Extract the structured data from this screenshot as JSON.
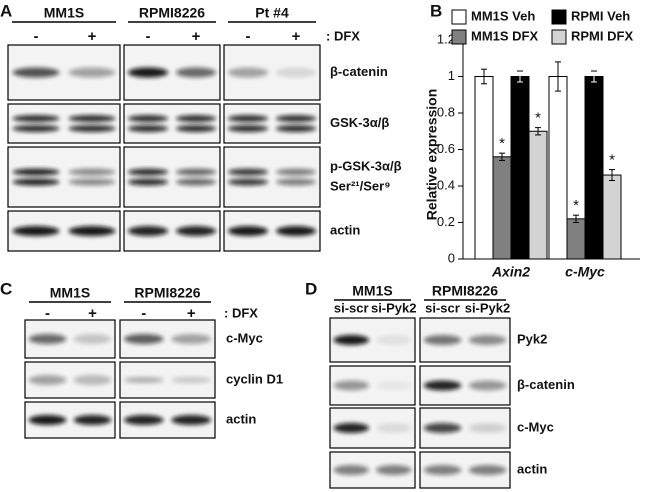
{
  "panels": {
    "A": {
      "label": "A",
      "columns": [
        "MM1S",
        "RPMI8226",
        "Pt #4"
      ],
      "conditions": [
        "-",
        "+"
      ],
      "treatment": ": DFX",
      "rows": [
        [
          "β-catenin"
        ],
        [
          "GSK-3α/β"
        ],
        [
          "p-GSK-3α/β",
          "Ser²¹/Ser⁹"
        ],
        [
          "actin"
        ]
      ]
    },
    "C": {
      "label": "C",
      "columns": [
        "MM1S",
        "RPMI8226"
      ],
      "conditions": [
        "-",
        "+"
      ],
      "treatment": ": DFX",
      "rows": [
        [
          "c-Myc"
        ],
        [
          "cyclin D1"
        ],
        [
          "actin"
        ]
      ]
    },
    "D": {
      "label": "D",
      "columns": [
        "MM1S",
        "RPMI8226"
      ],
      "conditions": [
        "si-scr",
        "si-Pyk2"
      ],
      "rows": [
        [
          "Pyk2"
        ],
        [
          "β-catenin"
        ],
        [
          "c-Myc"
        ],
        [
          "actin"
        ]
      ]
    }
  },
  "chart_data": {
    "type": "bar",
    "panel_label": "B",
    "y_label": "Relative expression",
    "categories": [
      "Axin2",
      "c-Myc"
    ],
    "series": [
      {
        "name": "MM1S Veh",
        "color": "#ffffff",
        "values": [
          1,
          1
        ],
        "errors": [
          0.04,
          0.08
        ]
      },
      {
        "name": "MM1S DFX",
        "color": "#808080",
        "values": [
          0.56,
          0.22
        ],
        "errors": [
          0.02,
          0.02
        ],
        "annotations": [
          "*",
          "*"
        ]
      },
      {
        "name": "RPMI Veh",
        "color": "#000000",
        "values": [
          1,
          1
        ],
        "errors": [
          0.03,
          0.03
        ]
      },
      {
        "name": "RPMI DFX",
        "color": "#d3d3d3",
        "values": [
          0.7,
          0.46
        ],
        "errors": [
          0.02,
          0.03
        ],
        "annotations": [
          "*",
          "*"
        ]
      }
    ],
    "ylim": [
      0,
      1.2
    ],
    "yticks": [
      0,
      0.2,
      0.4,
      0.6,
      0.8,
      1,
      1.2
    ],
    "legend": "top"
  }
}
